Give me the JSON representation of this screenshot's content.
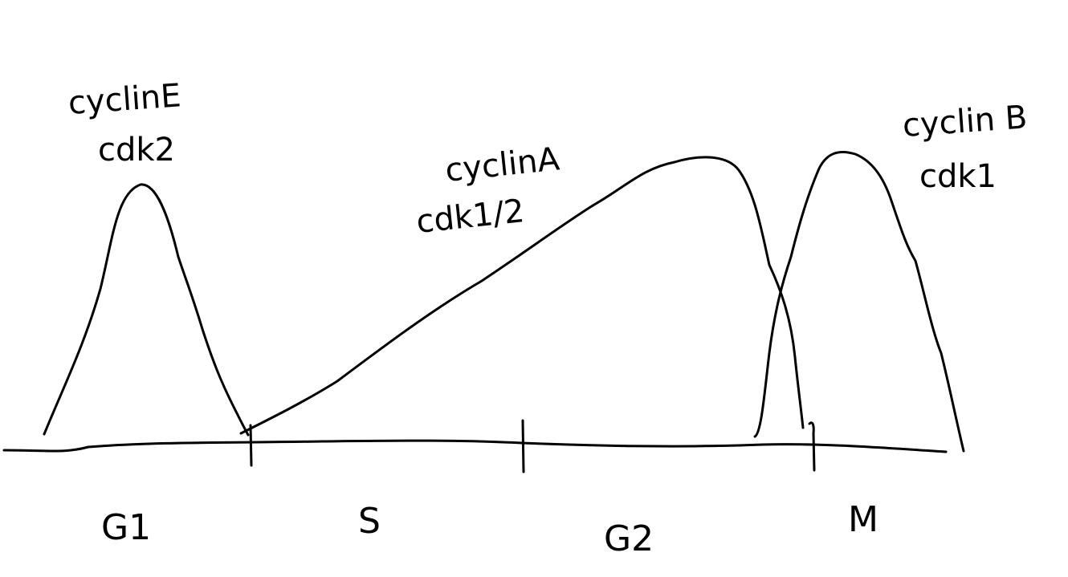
{
  "phases": {
    "g1": "G1",
    "s": "S",
    "g2": "G2",
    "m": "M"
  },
  "curves": {
    "cyclin_e": {
      "line1": "cyclinE",
      "line2": "cdk2"
    },
    "cyclin_a": {
      "line1": "cyclinA",
      "line2": "cdk1/2"
    },
    "cyclin_b": {
      "line1": "cyclin B",
      "line2": "cdk1"
    }
  },
  "colors": {
    "ink": "#000000",
    "paper": "#ffffff"
  }
}
